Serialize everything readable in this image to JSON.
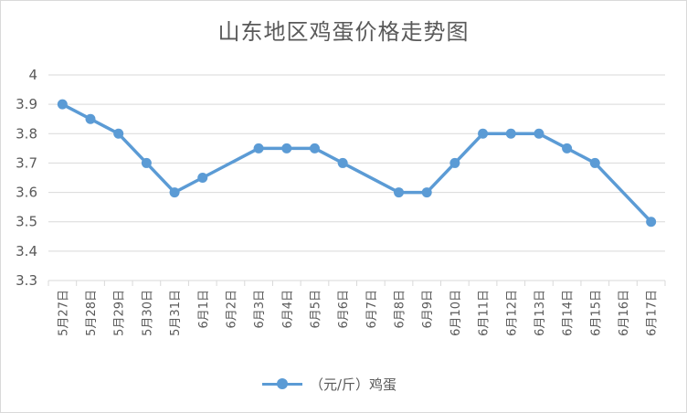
{
  "chart_data": {
    "type": "line",
    "title": "山东地区鸡蛋价格走势图",
    "xlabel": "",
    "ylabel": "",
    "ylim": [
      3.3,
      4
    ],
    "yticks": [
      "3.3",
      "3.4",
      "3.5",
      "3.6",
      "3.7",
      "3.8",
      "3.9",
      "4"
    ],
    "grid": "horizontal",
    "legend_position": "bottom",
    "categories": [
      "5月27日",
      "5月28日",
      "5月29日",
      "5月30日",
      "5月31日",
      "6月1日",
      "6月2日",
      "6月3日",
      "6月4日",
      "6月5日",
      "6月6日",
      "6月7日",
      "6月8日",
      "6月9日",
      "6月10日",
      "6月11日",
      "6月12日",
      "6月13日",
      "6月14日",
      "6月15日",
      "6月16日",
      "6月17日"
    ],
    "series": [
      {
        "name": "（元/斤）鸡蛋",
        "color": "#5b9bd5",
        "values": [
          3.9,
          3.85,
          3.8,
          3.7,
          3.6,
          3.65,
          null,
          3.75,
          3.75,
          3.75,
          3.7,
          null,
          3.6,
          3.6,
          3.7,
          3.8,
          3.8,
          3.8,
          3.75,
          3.7,
          null,
          3.5
        ]
      }
    ]
  }
}
